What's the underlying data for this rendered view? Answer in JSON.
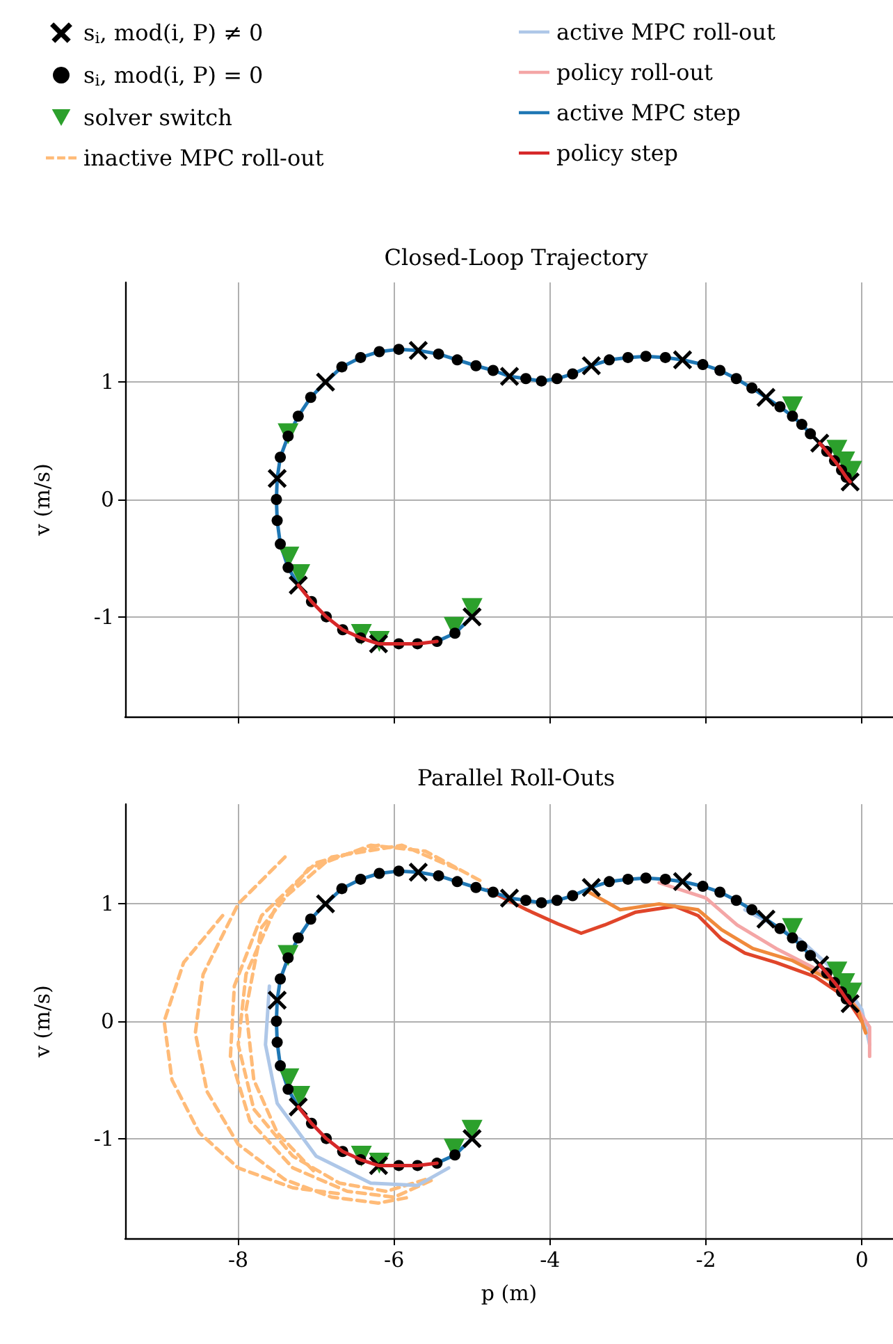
{
  "chart_data": [
    {
      "type": "line",
      "title": "Closed-Loop Trajectory",
      "ylabel": "v (m/s)",
      "xlim": [
        -9.45,
        0.4
      ],
      "xticks": [
        -8,
        -6,
        -4,
        -2,
        0
      ],
      "ylim": [
        -1.85,
        1.85
      ],
      "yticks": [
        -1,
        0,
        1
      ],
      "grid": true,
      "legend": false,
      "tick_labels": "y",
      "series": [
        {
          "type": "scatter",
          "color": "#000000",
          "marker": "cross",
          "x": [
            -5.0,
            -6.2,
            -7.23,
            -7.5,
            -6.88,
            -5.69,
            -4.52,
            -3.47,
            -2.3,
            -1.23,
            -0.54,
            -0.15
          ],
          "values": [
            -1.0,
            -1.23,
            -0.73,
            0.18,
            1.0,
            1.27,
            1.05,
            1.14,
            1.19,
            0.87,
            0.48,
            0.15
          ]
        },
        {
          "type": "scatter",
          "color": "#000000",
          "marker": "circle",
          "x": [
            -5.22,
            -5.45,
            -5.7,
            -5.94,
            -6.43,
            -6.66,
            -6.87,
            -7.06,
            -7.36,
            -7.46,
            -7.5,
            -7.51,
            -7.46,
            -7.36,
            -7.23,
            -7.07,
            -6.67,
            -6.43,
            -6.19,
            -5.94,
            -5.43,
            -5.19,
            -4.95,
            -4.73,
            -4.31,
            -4.11,
            -3.91,
            -3.71,
            -3.24,
            -3.0,
            -2.77,
            -2.52,
            -2.04,
            -1.82,
            -1.61,
            -1.41,
            -1.05,
            -0.89,
            -0.77,
            -0.66,
            -0.45,
            -0.35,
            -0.26,
            -0.2
          ],
          "values": [
            -1.14,
            -1.21,
            -1.23,
            -1.23,
            -1.18,
            -1.11,
            -1.0,
            -0.87,
            -0.58,
            -0.38,
            -0.18,
            0.0,
            0.36,
            0.54,
            0.71,
            0.87,
            1.13,
            1.21,
            1.26,
            1.28,
            1.24,
            1.19,
            1.14,
            1.1,
            1.03,
            1.01,
            1.03,
            1.07,
            1.19,
            1.21,
            1.22,
            1.21,
            1.15,
            1.1,
            1.03,
            0.95,
            0.79,
            0.71,
            0.64,
            0.56,
            0.41,
            0.33,
            0.25,
            0.19
          ]
        },
        {
          "type": "scatter",
          "color": "#2ca02c",
          "marker": "triangle",
          "x": [
            -7.36,
            -7.35,
            -7.21,
            -6.42,
            -6.19,
            -5.23,
            -5.0,
            -0.89,
            -0.32,
            -0.22,
            -0.13
          ],
          "values": [
            0.56,
            -0.49,
            -0.64,
            -1.15,
            -1.21,
            -1.09,
            -0.93,
            0.79,
            0.42,
            0.32,
            0.24
          ]
        },
        {
          "color": "#1f77b4",
          "marker": "none",
          "x": [
            -5.0,
            -5.22,
            -5.45,
            null,
            -7.23,
            -7.36,
            -7.46,
            -7.5,
            -7.51,
            -7.5,
            -7.46,
            -7.36,
            -7.23,
            -7.07,
            -6.88,
            -6.67,
            -6.43,
            -6.19,
            -5.94,
            -5.69,
            -5.43,
            -5.19,
            -4.95,
            -4.73,
            -4.52,
            -4.31,
            -4.11,
            -3.91,
            -3.71,
            -3.47,
            -3.24,
            -3.0,
            -2.77,
            -2.52,
            -2.3,
            -2.04,
            -1.82,
            -1.61,
            -1.41,
            -1.23,
            -1.05,
            -0.89,
            -0.77,
            -0.66,
            -0.54
          ],
          "values": [
            -1.0,
            -1.14,
            -1.21,
            null,
            -0.73,
            -0.58,
            -0.38,
            -0.18,
            0.0,
            0.18,
            0.36,
            0.54,
            0.71,
            0.87,
            1.0,
            1.13,
            1.21,
            1.26,
            1.28,
            1.27,
            1.24,
            1.19,
            1.14,
            1.1,
            1.05,
            1.03,
            1.01,
            1.03,
            1.07,
            1.14,
            1.19,
            1.21,
            1.22,
            1.21,
            1.19,
            1.15,
            1.1,
            1.03,
            0.95,
            0.87,
            0.79,
            0.71,
            0.64,
            0.56,
            0.48
          ]
        },
        {
          "color": "#d62728",
          "marker": "none",
          "x": [
            -5.45,
            -5.7,
            -5.94,
            -6.2,
            -6.43,
            -6.66,
            -6.87,
            -7.06,
            -7.23,
            null,
            -0.54,
            -0.45,
            -0.35,
            -0.26,
            -0.2,
            -0.15
          ],
          "values": [
            -1.21,
            -1.23,
            -1.23,
            -1.23,
            -1.18,
            -1.11,
            -1.0,
            -0.87,
            -0.73,
            null,
            0.48,
            0.41,
            0.33,
            0.25,
            0.19,
            0.15
          ]
        }
      ]
    },
    {
      "type": "line",
      "title": "Parallel Roll-Outs",
      "xlabel": "p (m)",
      "ylabel": "v (m/s)",
      "xlim": [
        -9.45,
        0.4
      ],
      "xticks": [
        -8,
        -6,
        -4,
        -2,
        0
      ],
      "ylim": [
        -1.85,
        1.85
      ],
      "yticks": [
        -1,
        0,
        1
      ],
      "grid": true,
      "legend": "top",
      "series": [
        {
          "name": "s$_{i}$, mod(i, P) ≠ 0",
          "type": "scatter",
          "color": "#000000",
          "marker": "cross",
          "x": [
            -5.0,
            -6.2,
            -7.23,
            -7.5,
            -6.88,
            -5.69,
            -4.52,
            -3.47,
            -2.3,
            -1.23,
            -0.54,
            -0.15
          ],
          "values": [
            -1.0,
            -1.23,
            -0.73,
            0.18,
            1.0,
            1.27,
            1.05,
            1.14,
            1.19,
            0.87,
            0.48,
            0.15
          ]
        },
        {
          "name": "s$_{i}$, mod(i, P) = 0",
          "type": "scatter",
          "color": "#000000",
          "marker": "circle",
          "x": [
            -5.22,
            -5.45,
            -5.7,
            -5.94,
            -6.43,
            -6.66,
            -6.87,
            -7.06,
            -7.36,
            -7.46,
            -7.5,
            -7.51,
            -7.46,
            -7.36,
            -7.23,
            -7.07,
            -6.67,
            -6.43,
            -6.19,
            -5.94,
            -5.43,
            -5.19,
            -4.95,
            -4.73,
            -4.31,
            -4.11,
            -3.91,
            -3.71,
            -3.24,
            -3.0,
            -2.77,
            -2.52,
            -2.04,
            -1.82,
            -1.61,
            -1.41,
            -1.05,
            -0.89,
            -0.77,
            -0.66,
            -0.45,
            -0.35,
            -0.26,
            -0.2
          ],
          "values": [
            -1.14,
            -1.21,
            -1.23,
            -1.23,
            -1.18,
            -1.11,
            -1.0,
            -0.87,
            -0.58,
            -0.38,
            -0.18,
            0.0,
            0.36,
            0.54,
            0.71,
            0.87,
            1.13,
            1.21,
            1.26,
            1.28,
            1.24,
            1.19,
            1.14,
            1.1,
            1.03,
            1.01,
            1.03,
            1.07,
            1.19,
            1.21,
            1.22,
            1.21,
            1.15,
            1.1,
            1.03,
            0.95,
            0.79,
            0.71,
            0.64,
            0.56,
            0.41,
            0.33,
            0.25,
            0.19
          ]
        },
        {
          "name": "solver switch",
          "type": "scatter",
          "color": "#2ca02c",
          "marker": "triangle",
          "x": [
            -7.36,
            -7.35,
            -7.21,
            -6.42,
            -6.19,
            -5.23,
            -5.0,
            -0.89,
            -0.32,
            -0.22,
            -0.13
          ],
          "values": [
            0.56,
            -0.49,
            -0.64,
            -1.15,
            -1.21,
            -1.09,
            -0.93,
            0.79,
            0.42,
            0.32,
            0.24
          ]
        },
        {
          "name": "inactive MPC roll-out",
          "color": "#ffbb78",
          "marker": "none",
          "line_style": "dashed",
          "x": [
            -8.2,
            -8.7,
            -8.95,
            -8.85,
            -8.5,
            -8.0,
            -7.3,
            -6.7
          ],
          "values": [
            0.9,
            0.5,
            0.0,
            -0.5,
            -0.95,
            -1.25,
            -1.42,
            -1.47
          ]
        },
        {
          "color": "#ffbb78",
          "marker": "none",
          "line_style": "dashed",
          "x": [
            -7.4,
            -8.0,
            -8.45,
            -8.55,
            -8.4,
            -8.0,
            -7.4,
            -6.8,
            -6.2,
            -5.8
          ],
          "values": [
            1.4,
            1.0,
            0.4,
            -0.1,
            -0.6,
            -1.05,
            -1.35,
            -1.5,
            -1.55,
            -1.5
          ]
        },
        {
          "color": "#ffbb78",
          "marker": "none",
          "line_style": "dashed",
          "x": [
            -6.2,
            -7.0,
            -7.7,
            -8.05,
            -8.1,
            -7.85,
            -7.3,
            -6.6,
            -6.0,
            -5.5
          ],
          "values": [
            1.5,
            1.35,
            0.9,
            0.3,
            -0.3,
            -0.85,
            -1.25,
            -1.45,
            -1.5,
            -1.35
          ]
        },
        {
          "color": "#ffbb78",
          "marker": "none",
          "line_style": "dashed",
          "x": [
            -5.2,
            -5.9,
            -6.8,
            -7.5,
            -7.9,
            -8.0,
            -7.8,
            -7.3,
            -6.7,
            -6.1,
            -5.6
          ],
          "values": [
            1.3,
            1.5,
            1.4,
            1.0,
            0.4,
            -0.2,
            -0.75,
            -1.15,
            -1.38,
            -1.45,
            -1.35
          ]
        },
        {
          "color": "#ffbb78",
          "marker": "none",
          "line_style": "dashed",
          "x": [
            -4.9,
            -5.6,
            -6.3,
            -7.1,
            -7.7,
            -7.9,
            -7.8,
            -7.5,
            -7.0
          ],
          "values": [
            1.2,
            1.45,
            1.5,
            1.3,
            0.8,
            0.1,
            -0.5,
            -0.95,
            -1.3
          ]
        },
        {
          "name": "active MPC roll-out",
          "color": "#aec7e8",
          "marker": "none",
          "x": [
            -7.6,
            -7.65,
            -7.5,
            -7.0,
            -6.3,
            -5.7,
            -5.3
          ],
          "values": [
            0.3,
            -0.2,
            -0.7,
            -1.15,
            -1.38,
            -1.4,
            -1.25
          ]
        },
        {
          "color": "#aec7e8",
          "marker": "none",
          "x": [
            -1.5,
            -0.8,
            -0.3,
            0.0,
            0.1
          ],
          "values": [
            0.95,
            0.7,
            0.4,
            0.1,
            -0.2
          ]
        },
        {
          "name": "policy roll-out",
          "color": "#f4a6a6",
          "marker": "none",
          "x": [
            -2.6,
            -2.0,
            -1.6,
            -1.1,
            -0.6,
            -0.2,
            0.1,
            0.1
          ],
          "values": [
            1.18,
            1.05,
            0.82,
            0.62,
            0.45,
            0.25,
            -0.05,
            -0.3
          ]
        },
        {
          "color": "#e0452a",
          "marker": "none",
          "x": [
            -4.8,
            -4.3,
            -3.9,
            -3.6,
            -3.3,
            -2.9,
            -2.4,
            -2.1,
            -1.8,
            -1.5,
            -1.1,
            -0.6,
            -0.2,
            0.0
          ],
          "values": [
            1.12,
            0.95,
            0.83,
            0.75,
            0.82,
            0.93,
            0.98,
            0.9,
            0.7,
            0.58,
            0.5,
            0.38,
            0.2,
            0.0
          ]
        },
        {
          "color": "#f08a3c",
          "marker": "none",
          "x": [
            -3.5,
            -3.1,
            -2.6,
            -2.1,
            -1.8,
            -1.4,
            -0.9,
            -0.4,
            -0.05,
            0.05
          ],
          "values": [
            1.1,
            0.95,
            1.0,
            0.95,
            0.78,
            0.62,
            0.52,
            0.35,
            0.1,
            -0.1
          ]
        },
        {
          "name": "active MPC step",
          "color": "#1f77b4",
          "marker": "none",
          "x": [
            -5.0,
            -5.22,
            -5.45,
            null,
            -7.23,
            -7.36,
            -7.46,
            -7.5,
            -7.51,
            -7.5,
            -7.46,
            -7.36,
            -7.23,
            -7.07,
            -6.88,
            -6.67,
            -6.43,
            -6.19,
            -5.94,
            -5.69,
            -5.43,
            -5.19,
            -4.95,
            -4.73,
            -4.52,
            -4.31,
            -4.11,
            -3.91,
            -3.71,
            -3.47,
            -3.24,
            -3.0,
            -2.77,
            -2.52,
            -2.3,
            -2.04,
            -1.82,
            -1.61,
            -1.41,
            -1.23,
            -1.05,
            -0.89,
            -0.77,
            -0.66,
            -0.54
          ],
          "values": [
            -1.0,
            -1.14,
            -1.21,
            null,
            -0.73,
            -0.58,
            -0.38,
            -0.18,
            0.0,
            0.18,
            0.36,
            0.54,
            0.71,
            0.87,
            1.0,
            1.13,
            1.21,
            1.26,
            1.28,
            1.27,
            1.24,
            1.19,
            1.14,
            1.1,
            1.05,
            1.03,
            1.01,
            1.03,
            1.07,
            1.14,
            1.19,
            1.21,
            1.22,
            1.21,
            1.19,
            1.15,
            1.1,
            1.03,
            0.95,
            0.87,
            0.79,
            0.71,
            0.64,
            0.56,
            0.48
          ]
        },
        {
          "name": "policy step",
          "color": "#d62728",
          "marker": "none",
          "x": [
            -5.45,
            -5.7,
            -5.94,
            -6.2,
            -6.43,
            -6.66,
            -6.87,
            -7.06,
            -7.23,
            null,
            -0.54,
            -0.45,
            -0.35,
            -0.26,
            -0.2,
            -0.15
          ],
          "values": [
            -1.21,
            -1.23,
            -1.23,
            -1.23,
            -1.18,
            -1.11,
            -1.0,
            -0.87,
            -0.73,
            null,
            0.48,
            0.41,
            0.33,
            0.25,
            0.19,
            0.15
          ]
        }
      ]
    }
  ]
}
